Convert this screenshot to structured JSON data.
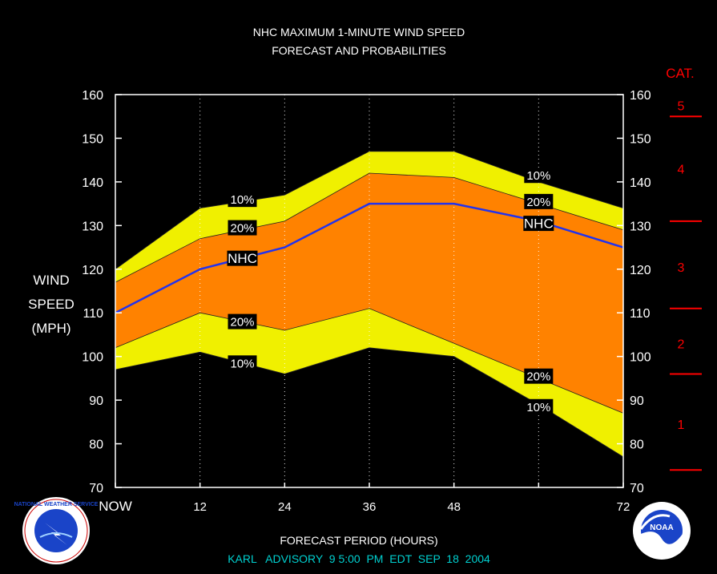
{
  "chart_data": {
    "type": "area",
    "title": "NHC MAXIMUM 1-MINUTE WIND SPEED",
    "subtitle": "FORECAST AND PROBABILITIES",
    "ylabel": [
      "WIND",
      "SPEED",
      "(MPH)"
    ],
    "xlabel": "FORECAST PERIOD (HOURS)",
    "footer": "KARL   ADVISORY  9 5:00  PM  EDT  SEP  18  2004",
    "ylim": [
      70,
      160
    ],
    "yticks": [
      70,
      80,
      90,
      100,
      110,
      120,
      130,
      140,
      150,
      160
    ],
    "xlim": [
      0,
      72
    ],
    "x": [
      0,
      12,
      24,
      36,
      48,
      60,
      72
    ],
    "xtick_labels": [
      "NOW",
      "12",
      "24",
      "36",
      "48",
      "",
      "72"
    ],
    "series": [
      {
        "name": "10%",
        "values": [
          120,
          134,
          137,
          147,
          147,
          140,
          134
        ]
      },
      {
        "name": "20%",
        "values": [
          117,
          127,
          131,
          142,
          141,
          135,
          129
        ]
      },
      {
        "name": "NHC",
        "values": [
          110,
          120,
          125,
          135,
          135,
          131,
          125
        ]
      },
      {
        "name": "20%",
        "values": [
          102,
          110,
          106,
          111,
          103,
          95,
          87
        ]
      },
      {
        "name": "10%",
        "values": [
          97,
          101,
          96,
          102,
          100,
          89,
          77
        ]
      }
    ],
    "inline_labels": [
      {
        "text": "10%",
        "x": 18,
        "y": 136
      },
      {
        "text": "20%",
        "x": 18,
        "y": 129.5
      },
      {
        "text": "NHC",
        "x": 18,
        "y": 122.5
      },
      {
        "text": "20%",
        "x": 18,
        "y": 108
      },
      {
        "text": "10%",
        "x": 18,
        "y": 98.5
      },
      {
        "text": "10%",
        "x": 60,
        "y": 141.5
      },
      {
        "text": "20%",
        "x": 60,
        "y": 135.5
      },
      {
        "text": "NHC",
        "x": 60,
        "y": 130.5
      },
      {
        "text": "20%",
        "x": 60,
        "y": 95.5
      },
      {
        "text": "10%",
        "x": 60,
        "y": 88.5
      }
    ],
    "category_header": "CAT.",
    "categories": [
      {
        "label": "1",
        "min": 74,
        "max": 95
      },
      {
        "label": "2",
        "min": 96,
        "max": 110
      },
      {
        "label": "3",
        "min": 111,
        "max": 130
      },
      {
        "label": "4",
        "min": 131,
        "max": 155
      },
      {
        "label": "5",
        "min": 155,
        "max": 160
      }
    ],
    "category_boundaries": [
      74,
      96,
      111,
      131,
      155
    ],
    "colors": {
      "band_10": "#f0f000",
      "band_20": "#ff8200",
      "nhc_line": "#2233ee",
      "text": "#ffffff",
      "category": "#ff0000",
      "footer": "#00d0d0",
      "frame": "#ffffff"
    },
    "grid": "vertical-dotted"
  },
  "logos": {
    "left": "NATIONAL WEATHER SERVICE",
    "right": "NOAA"
  }
}
